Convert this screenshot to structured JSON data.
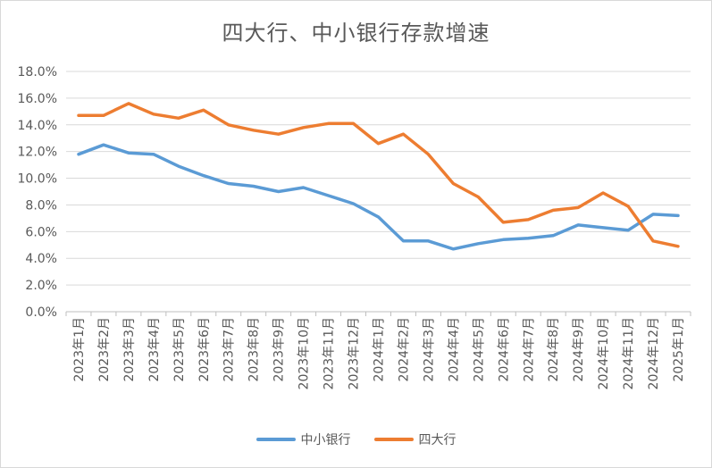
{
  "chart_data": {
    "type": "line",
    "title": "四大行、中小银行存款增速",
    "xlabel": "",
    "ylabel": "",
    "ylim": [
      0,
      18
    ],
    "yticks": [
      "0.0%",
      "2.0%",
      "4.0%",
      "6.0%",
      "8.0%",
      "10.0%",
      "12.0%",
      "14.0%",
      "16.0%",
      "18.0%"
    ],
    "grid": true,
    "legend_position": "bottom",
    "categories": [
      "2023年1月",
      "2023年2月",
      "2023年3月",
      "2023年4月",
      "2023年5月",
      "2023年6月",
      "2023年7月",
      "2023年8月",
      "2023年9月",
      "2023年10月",
      "2023年11月",
      "2023年12月",
      "2024年1月",
      "2024年2月",
      "2024年3月",
      "2024年4月",
      "2024年5月",
      "2024年6月",
      "2024年7月",
      "2024年8月",
      "2024年9月",
      "2024年10月",
      "2024年11月",
      "2024年12月",
      "2025年1月"
    ],
    "series": [
      {
        "name": "中小银行",
        "color": "#5b9bd5",
        "values": [
          11.8,
          12.5,
          11.9,
          11.8,
          10.9,
          10.2,
          9.6,
          9.4,
          9.0,
          9.3,
          8.7,
          8.1,
          7.1,
          5.3,
          5.3,
          4.7,
          5.1,
          5.4,
          5.5,
          5.7,
          6.5,
          6.3,
          6.1,
          7.3,
          7.2
        ]
      },
      {
        "name": "四大行",
        "color": "#ed7d31",
        "values": [
          14.7,
          14.7,
          15.6,
          14.8,
          14.5,
          15.1,
          14.0,
          13.6,
          13.3,
          13.8,
          14.1,
          14.1,
          12.6,
          13.3,
          11.8,
          9.6,
          8.6,
          6.7,
          6.9,
          7.6,
          7.8,
          8.9,
          7.9,
          5.3,
          4.9
        ]
      }
    ]
  }
}
